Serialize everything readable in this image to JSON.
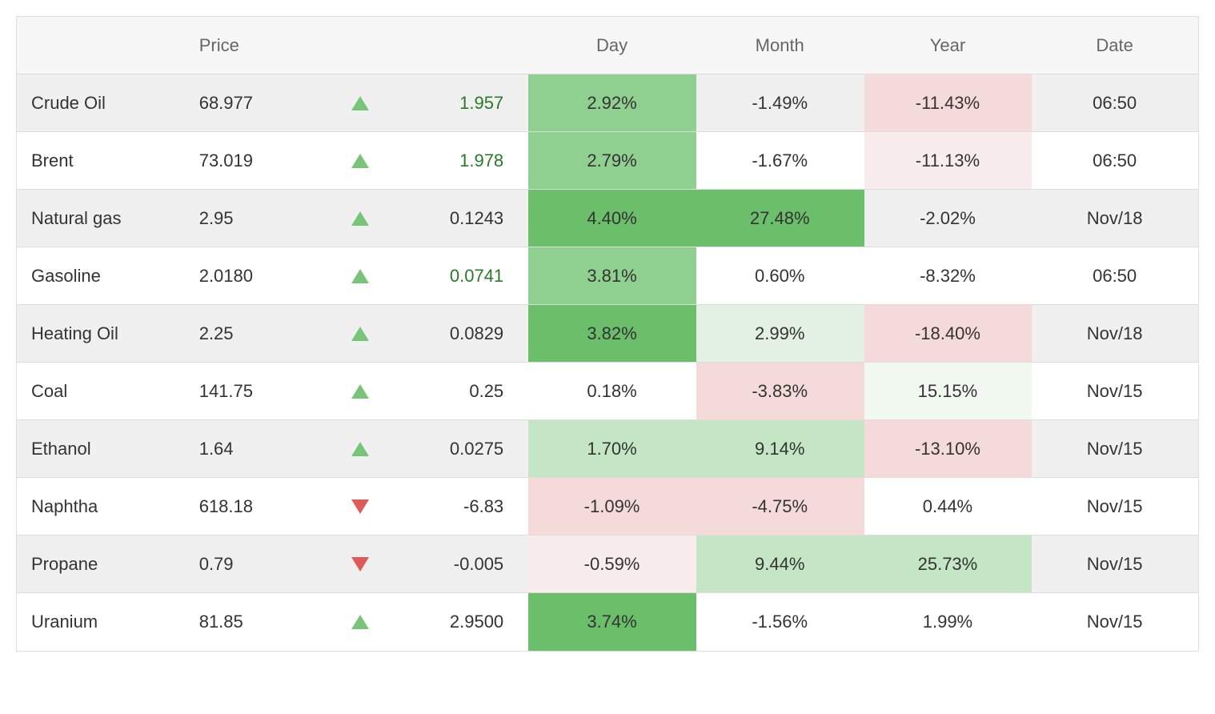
{
  "columns": {
    "name": "",
    "price": "Price",
    "arrow": "",
    "change": "",
    "day": "Day",
    "month": "Month",
    "year": "Year",
    "date": "Date"
  },
  "colors": {
    "row_alt_bg": "#f0f0f0",
    "row_bg": "#ffffff",
    "header_bg": "#f7f7f7",
    "border": "#dddddd",
    "text": "#333333",
    "header_text": "#666666",
    "up_triangle": "#7ac47a",
    "down_triangle": "#e05a5a",
    "change_pos": "#2a7a2a"
  },
  "heatmap": {
    "pos_strong": "#6bbf6b",
    "pos_med": "#8fcf8f",
    "pos_light": "#c5e6c5",
    "pos_faint": "#e3f1e3",
    "pos_very_faint": "#f0f8f0",
    "neg_med": "#f0c9c9",
    "neg_light": "#f5dada",
    "neg_faint": "#f9ecec",
    "none": "transparent"
  },
  "rows": [
    {
      "name": "Crude Oil",
      "price": "68.977",
      "dir": "up",
      "change": "1.957",
      "change_colored": true,
      "day": "2.92%",
      "day_bg": "pos_med",
      "month": "-1.49%",
      "month_bg": "none",
      "year": "-11.43%",
      "year_bg": "neg_light",
      "date": "06:50",
      "alt": true
    },
    {
      "name": "Brent",
      "price": "73.019",
      "dir": "up",
      "change": "1.978",
      "change_colored": true,
      "day": "2.79%",
      "day_bg": "pos_med",
      "month": "-1.67%",
      "month_bg": "none",
      "year": "-11.13%",
      "year_bg": "neg_faint",
      "date": "06:50",
      "alt": false
    },
    {
      "name": "Natural gas",
      "price": "2.95",
      "dir": "up",
      "change": "0.1243",
      "change_colored": false,
      "day": "4.40%",
      "day_bg": "pos_strong",
      "month": "27.48%",
      "month_bg": "pos_strong",
      "year": "-2.02%",
      "year_bg": "none",
      "date": "Nov/18",
      "alt": true
    },
    {
      "name": "Gasoline",
      "price": "2.0180",
      "dir": "up",
      "change": "0.0741",
      "change_colored": true,
      "day": "3.81%",
      "day_bg": "pos_med",
      "month": "0.60%",
      "month_bg": "none",
      "year": "-8.32%",
      "year_bg": "none",
      "date": "06:50",
      "alt": false
    },
    {
      "name": "Heating Oil",
      "price": "2.25",
      "dir": "up",
      "change": "0.0829",
      "change_colored": false,
      "day": "3.82%",
      "day_bg": "pos_strong",
      "month": "2.99%",
      "month_bg": "pos_faint",
      "year": "-18.40%",
      "year_bg": "neg_light",
      "date": "Nov/18",
      "alt": true
    },
    {
      "name": "Coal",
      "price": "141.75",
      "dir": "up",
      "change": "0.25",
      "change_colored": false,
      "day": "0.18%",
      "day_bg": "none",
      "month": "-3.83%",
      "month_bg": "neg_light",
      "year": "15.15%",
      "year_bg": "pos_very_faint",
      "date": "Nov/15",
      "alt": false
    },
    {
      "name": "Ethanol",
      "price": "1.64",
      "dir": "up",
      "change": "0.0275",
      "change_colored": false,
      "day": "1.70%",
      "day_bg": "pos_light",
      "month": "9.14%",
      "month_bg": "pos_light",
      "year": "-13.10%",
      "year_bg": "neg_light",
      "date": "Nov/15",
      "alt": true
    },
    {
      "name": "Naphtha",
      "price": "618.18",
      "dir": "down",
      "change": "-6.83",
      "change_colored": false,
      "day": "-1.09%",
      "day_bg": "neg_light",
      "month": "-4.75%",
      "month_bg": "neg_light",
      "year": "0.44%",
      "year_bg": "none",
      "date": "Nov/15",
      "alt": false
    },
    {
      "name": "Propane",
      "price": "0.79",
      "dir": "down",
      "change": "-0.005",
      "change_colored": false,
      "day": "-0.59%",
      "day_bg": "neg_faint",
      "month": "9.44%",
      "month_bg": "pos_light",
      "year": "25.73%",
      "year_bg": "pos_light",
      "date": "Nov/15",
      "alt": true
    },
    {
      "name": "Uranium",
      "price": "81.85",
      "dir": "up",
      "change": "2.9500",
      "change_colored": false,
      "day": "3.74%",
      "day_bg": "pos_strong",
      "month": "-1.56%",
      "month_bg": "none",
      "year": "1.99%",
      "year_bg": "none",
      "date": "Nov/15",
      "alt": false
    }
  ]
}
